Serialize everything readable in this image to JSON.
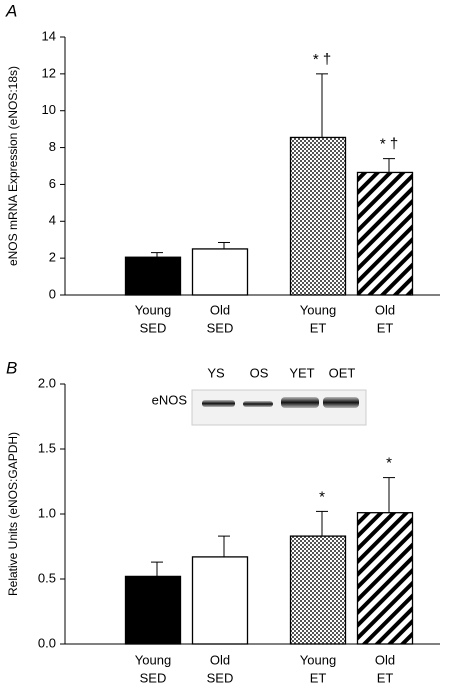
{
  "chart_data": [
    {
      "type": "bar",
      "panel_label": "A",
      "ylabel": "eNOS mRNA Expression (eNOS:18s)",
      "categories": [
        [
          "Young",
          "SED"
        ],
        [
          "Old",
          "SED"
        ],
        [
          "Young",
          "ET"
        ],
        [
          "Old",
          "ET"
        ]
      ],
      "values": [
        2.05,
        2.5,
        8.55,
        6.65
      ],
      "errors": [
        0.25,
        0.35,
        3.45,
        0.75
      ],
      "annotations": [
        null,
        null,
        "* †",
        "* †"
      ],
      "bar_styles": [
        "solid",
        "open",
        "crosshatch",
        "diagonal"
      ],
      "ylim": [
        0,
        14
      ],
      "yticks": [
        0,
        2,
        4,
        6,
        8,
        10,
        12,
        14
      ]
    },
    {
      "type": "bar",
      "panel_label": "B",
      "ylabel": "Relative Units (eNOS:GAPDH)",
      "categories": [
        [
          "Young",
          "SED"
        ],
        [
          "Old",
          "SED"
        ],
        [
          "Young",
          "ET"
        ],
        [
          "Old",
          "ET"
        ]
      ],
      "values": [
        0.52,
        0.67,
        0.83,
        1.01
      ],
      "errors": [
        0.11,
        0.16,
        0.19,
        0.27
      ],
      "annotations": [
        null,
        null,
        "*",
        "*"
      ],
      "bar_styles": [
        "solid",
        "open",
        "crosshatch",
        "diagonal"
      ],
      "ylim": [
        0,
        2
      ],
      "yticks": [
        {
          "value": 0,
          "label": "0.0"
        },
        0.5,
        {
          "value": 1,
          "label": "1.0"
        },
        1.5,
        {
          "value": 2,
          "label": "2.0"
        }
      ],
      "blot": {
        "lane_labels": [
          "YS",
          "OS",
          "YET",
          "OET"
        ],
        "row_label": "eNOS"
      }
    }
  ]
}
